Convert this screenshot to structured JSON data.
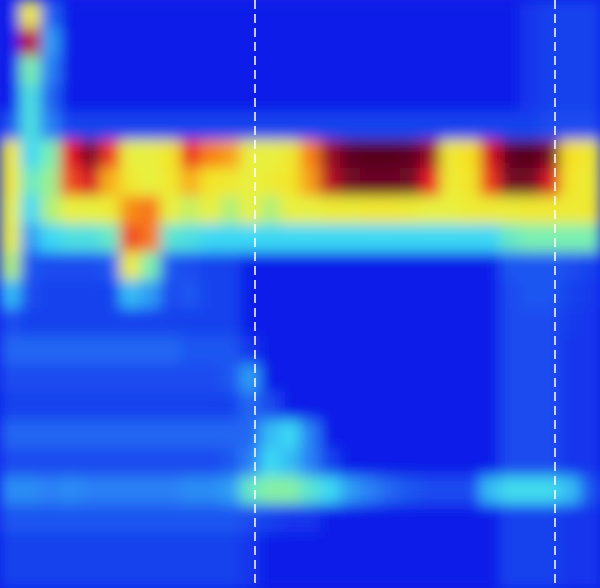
{
  "chart_data": {
    "type": "heatmap",
    "xlim": [
      0,
      30
    ],
    "ylim": [
      21,
      0
    ],
    "zlim": [
      0,
      100
    ],
    "tick_labels": false,
    "vlines": [
      12.75,
      27.75
    ],
    "z": [
      [
        0,
        60,
        15,
        0,
        0,
        0,
        0,
        0,
        0,
        0,
        0,
        0,
        0,
        0,
        0,
        0,
        0,
        0,
        0,
        0,
        0,
        0,
        0,
        0,
        0,
        0,
        5,
        8,
        8,
        8
      ],
      [
        0,
        88,
        25,
        0,
        0,
        0,
        0,
        0,
        0,
        0,
        0,
        0,
        0,
        0,
        0,
        0,
        0,
        0,
        0,
        0,
        0,
        0,
        0,
        0,
        0,
        0,
        5,
        8,
        8,
        8
      ],
      [
        0,
        45,
        20,
        0,
        0,
        0,
        0,
        0,
        0,
        0,
        0,
        0,
        0,
        0,
        0,
        0,
        0,
        0,
        0,
        0,
        0,
        0,
        0,
        0,
        0,
        0,
        5,
        8,
        8,
        8
      ],
      [
        0,
        38,
        15,
        0,
        0,
        0,
        0,
        0,
        0,
        0,
        0,
        0,
        0,
        0,
        0,
        0,
        0,
        0,
        0,
        0,
        0,
        0,
        0,
        0,
        0,
        0,
        5,
        8,
        8,
        8
      ],
      [
        12,
        38,
        20,
        8,
        8,
        8,
        8,
        8,
        8,
        8,
        8,
        8,
        8,
        8,
        8,
        8,
        8,
        8,
        8,
        8,
        8,
        8,
        8,
        8,
        8,
        8,
        8,
        10,
        10,
        10
      ],
      [
        60,
        35,
        45,
        85,
        92,
        82,
        55,
        55,
        62,
        82,
        75,
        72,
        55,
        55,
        60,
        75,
        90,
        96,
        97,
        97,
        96,
        90,
        60,
        65,
        86,
        96,
        97,
        92,
        65,
        60
      ],
      [
        60,
        42,
        48,
        80,
        86,
        70,
        60,
        55,
        60,
        70,
        62,
        60,
        55,
        58,
        62,
        72,
        88,
        93,
        94,
        94,
        93,
        85,
        58,
        62,
        82,
        93,
        93,
        86,
        62,
        58
      ],
      [
        55,
        35,
        50,
        55,
        55,
        58,
        74,
        76,
        55,
        52,
        55,
        50,
        55,
        50,
        55,
        55,
        58,
        58,
        60,
        60,
        58,
        55,
        55,
        58,
        58,
        58,
        60,
        60,
        58,
        60
      ],
      [
        55,
        25,
        35,
        38,
        38,
        42,
        80,
        76,
        40,
        38,
        35,
        35,
        35,
        35,
        35,
        35,
        35,
        35,
        35,
        35,
        35,
        35,
        35,
        35,
        35,
        42,
        45,
        45,
        45,
        45
      ],
      [
        50,
        12,
        10,
        10,
        10,
        12,
        58,
        45,
        12,
        10,
        8,
        8,
        0,
        0,
        0,
        0,
        0,
        0,
        0,
        0,
        0,
        0,
        0,
        0,
        0,
        12,
        12,
        12,
        10,
        8
      ],
      [
        30,
        10,
        8,
        8,
        8,
        8,
        30,
        25,
        10,
        12,
        8,
        8,
        0,
        0,
        0,
        0,
        0,
        0,
        0,
        0,
        0,
        0,
        0,
        0,
        0,
        10,
        12,
        12,
        8,
        6
      ],
      [
        10,
        8,
        8,
        8,
        8,
        8,
        8,
        8,
        8,
        8,
        8,
        8,
        0,
        0,
        0,
        0,
        0,
        0,
        0,
        0,
        0,
        0,
        0,
        0,
        0,
        10,
        10,
        10,
        6,
        5
      ],
      [
        15,
        15,
        15,
        15,
        15,
        15,
        15,
        15,
        15,
        12,
        12,
        12,
        5,
        0,
        0,
        0,
        0,
        0,
        0,
        0,
        0,
        0,
        0,
        0,
        0,
        10,
        10,
        10,
        5,
        5
      ],
      [
        10,
        10,
        10,
        10,
        10,
        10,
        10,
        10,
        10,
        10,
        10,
        12,
        25,
        0,
        0,
        0,
        0,
        0,
        0,
        0,
        0,
        0,
        0,
        0,
        0,
        10,
        10,
        10,
        5,
        5
      ],
      [
        8,
        8,
        8,
        8,
        8,
        8,
        8,
        8,
        8,
        8,
        8,
        8,
        15,
        10,
        0,
        0,
        0,
        0,
        0,
        0,
        0,
        0,
        0,
        0,
        0,
        10,
        10,
        10,
        5,
        5
      ],
      [
        15,
        15,
        15,
        15,
        15,
        15,
        15,
        15,
        15,
        15,
        15,
        15,
        15,
        30,
        35,
        20,
        0,
        0,
        0,
        0,
        0,
        0,
        0,
        0,
        0,
        10,
        10,
        10,
        5,
        5
      ],
      [
        10,
        10,
        10,
        10,
        10,
        10,
        10,
        10,
        10,
        10,
        10,
        12,
        20,
        35,
        30,
        20,
        8,
        0,
        0,
        0,
        0,
        0,
        0,
        0,
        0,
        10,
        10,
        10,
        5,
        5
      ],
      [
        22,
        22,
        20,
        22,
        20,
        20,
        20,
        20,
        20,
        22,
        22,
        25,
        42,
        46,
        46,
        40,
        35,
        25,
        20,
        15,
        12,
        10,
        10,
        10,
        30,
        36,
        36,
        36,
        30,
        12
      ],
      [
        12,
        12,
        12,
        12,
        12,
        12,
        12,
        12,
        12,
        12,
        12,
        12,
        10,
        8,
        5,
        5,
        0,
        0,
        0,
        0,
        0,
        0,
        0,
        0,
        0,
        8,
        8,
        8,
        5,
        5
      ],
      [
        8,
        8,
        8,
        8,
        8,
        8,
        8,
        8,
        8,
        8,
        8,
        8,
        5,
        0,
        0,
        0,
        0,
        0,
        0,
        0,
        0,
        0,
        0,
        0,
        0,
        8,
        8,
        8,
        5,
        5
      ],
      [
        8,
        8,
        8,
        8,
        8,
        8,
        8,
        8,
        8,
        8,
        8,
        8,
        5,
        0,
        0,
        0,
        0,
        0,
        0,
        0,
        0,
        0,
        0,
        0,
        0,
        8,
        8,
        8,
        5,
        5
      ]
    ]
  }
}
